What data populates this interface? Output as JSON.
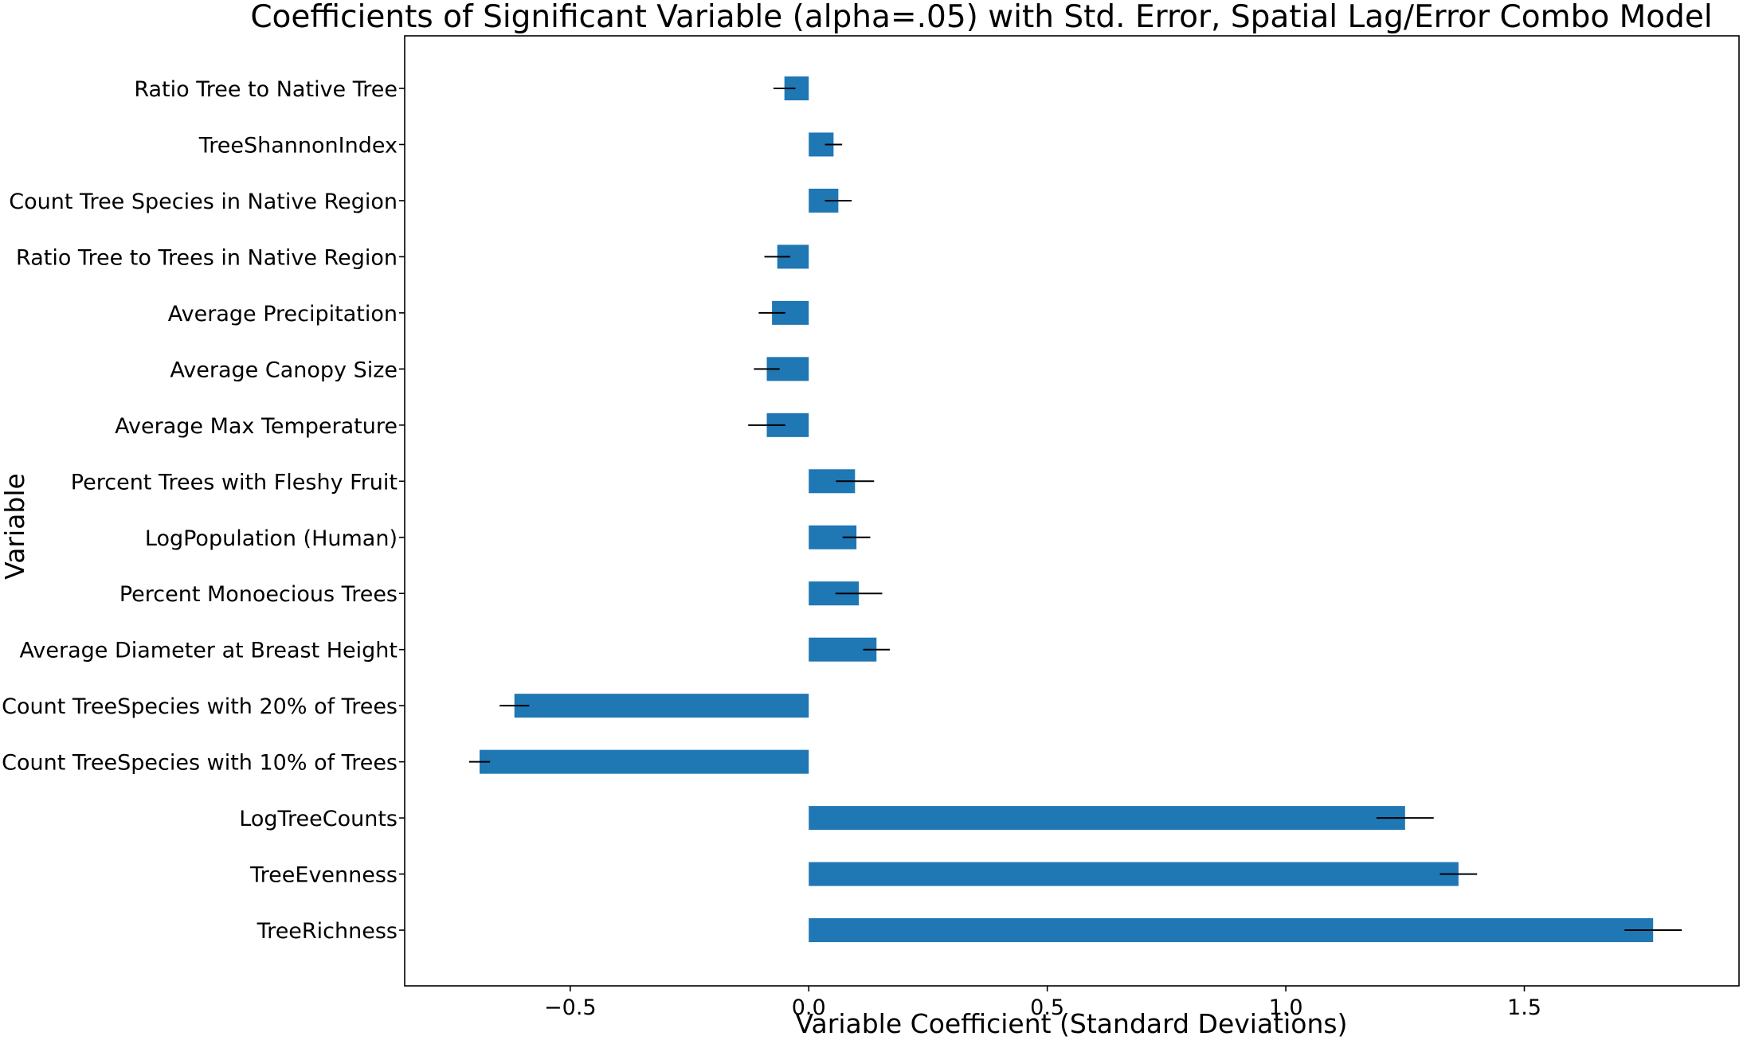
{
  "chart_data": {
    "type": "bar",
    "orientation": "horizontal",
    "title": "Coefficients of Significant Variable (alpha=.05) with Std. Error, Spatial Lag/Error Combo Model",
    "xlabel": "Variable Coefficient (Standard Deviations)",
    "ylabel": "Variable",
    "xlim": [
      -0.847,
      1.95
    ],
    "xticks": [
      {
        "value": -0.5,
        "label": "−0.5"
      },
      {
        "value": 0.0,
        "label": "0.0"
      },
      {
        "value": 0.5,
        "label": "0.5"
      },
      {
        "value": 1.0,
        "label": "1.0"
      },
      {
        "value": 1.5,
        "label": "1.5"
      }
    ],
    "grid": false,
    "bar_color": "#1f77b4",
    "error_color": "#000000",
    "categories": [
      "Ratio Tree to Native Tree",
      "TreeShannonIndex",
      "Count Tree Species in Native Region",
      "Ratio Tree to Trees in Native Region",
      "Average Precipitation",
      "Average Canopy Size",
      "Average Max Temperature",
      "Percent Trees with Fleshy Fruit",
      "LogPopulation (Human)",
      "Percent Monoecious Trees",
      "Average Diameter at Breast Height",
      "Count TreeSpecies with 20% of Trees",
      "Count TreeSpecies with 10% of Trees",
      "LogTreeCounts",
      "TreeEvenness",
      "TreeRichness"
    ],
    "values": [
      -0.051,
      0.052,
      0.062,
      -0.066,
      -0.077,
      -0.088,
      -0.088,
      0.097,
      0.1,
      0.105,
      0.142,
      -0.617,
      -0.69,
      1.25,
      1.362,
      1.77
    ],
    "errors": [
      0.023,
      0.018,
      0.028,
      0.027,
      0.028,
      0.027,
      0.039,
      0.04,
      0.029,
      0.049,
      0.028,
      0.031,
      0.022,
      0.06,
      0.039,
      0.06
    ]
  }
}
